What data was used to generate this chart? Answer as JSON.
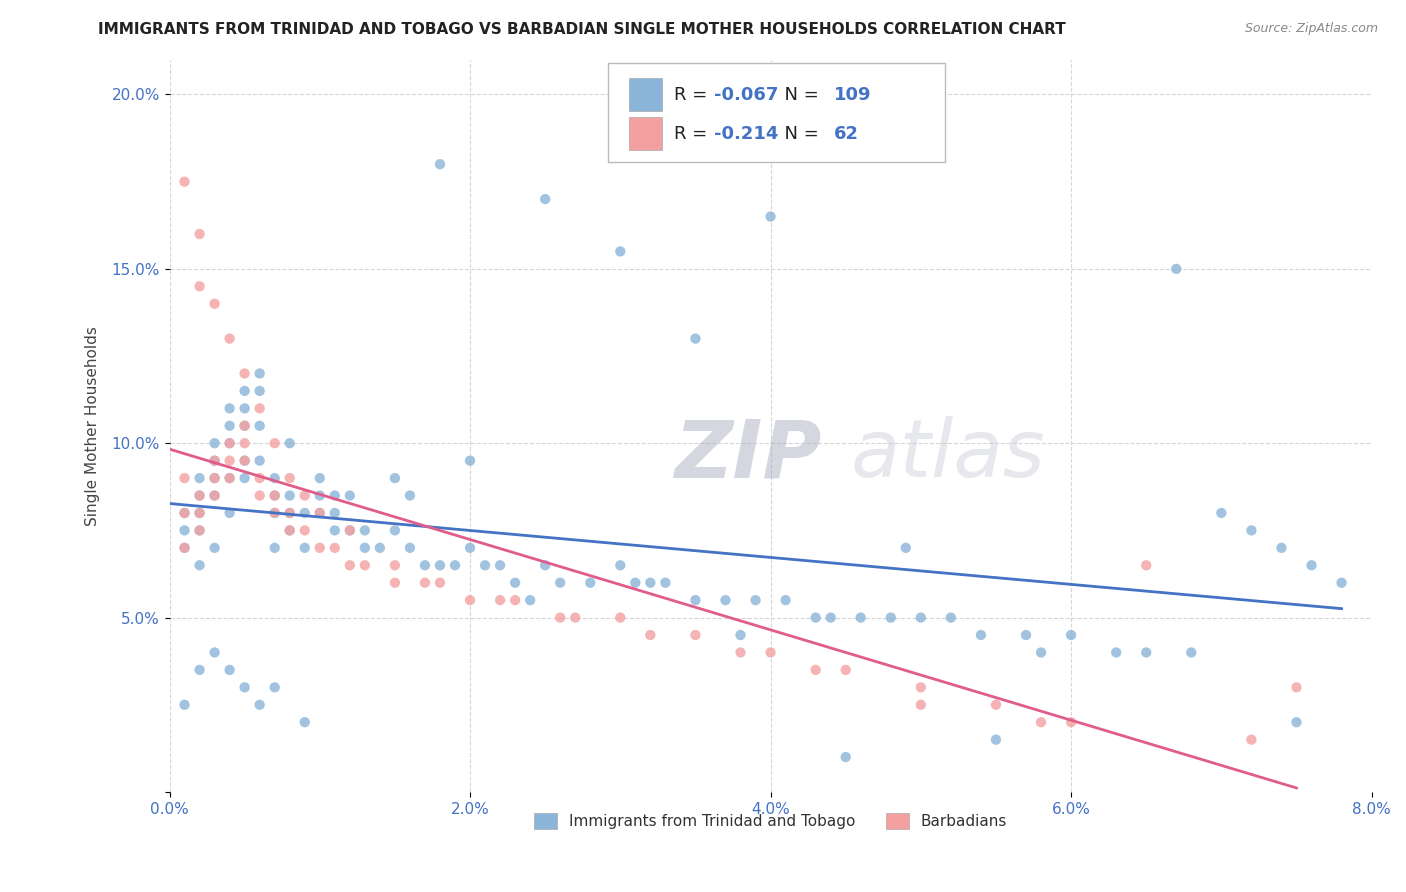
{
  "title": "IMMIGRANTS FROM TRINIDAD AND TOBAGO VS BARBADIAN SINGLE MOTHER HOUSEHOLDS CORRELATION CHART",
  "source": "Source: ZipAtlas.com",
  "ylabel": "Single Mother Households",
  "xlim": [
    0.0,
    0.08
  ],
  "ylim": [
    0.0,
    0.21
  ],
  "xticks": [
    0.0,
    0.02,
    0.04,
    0.06,
    0.08
  ],
  "xticklabels": [
    "0.0%",
    "2.0%",
    "4.0%",
    "6.0%",
    "8.0%"
  ],
  "yticks": [
    0.0,
    0.05,
    0.1,
    0.15,
    0.2
  ],
  "yticklabels": [
    "",
    "5.0%",
    "10.0%",
    "15.0%",
    "20.0%"
  ],
  "blue_color": "#8ab4d8",
  "pink_color": "#f4a0a0",
  "blue_line_color": "#4472c4",
  "pink_line_color": "#e05c8a",
  "legend_label1": "Immigrants from Trinidad and Tobago",
  "legend_label2": "Barbadians",
  "R1": "-0.067",
  "N1": "109",
  "R2": "-0.214",
  "N2": "62",
  "watermark_zip": "ZIP",
  "watermark_atlas": "atlas",
  "blue_scatter_x": [
    0.001,
    0.001,
    0.001,
    0.002,
    0.002,
    0.002,
    0.002,
    0.002,
    0.003,
    0.003,
    0.003,
    0.003,
    0.003,
    0.004,
    0.004,
    0.004,
    0.004,
    0.004,
    0.005,
    0.005,
    0.005,
    0.005,
    0.005,
    0.006,
    0.006,
    0.006,
    0.006,
    0.007,
    0.007,
    0.007,
    0.007,
    0.008,
    0.008,
    0.008,
    0.009,
    0.009,
    0.01,
    0.01,
    0.01,
    0.011,
    0.011,
    0.012,
    0.013,
    0.013,
    0.014,
    0.015,
    0.016,
    0.017,
    0.018,
    0.019,
    0.02,
    0.021,
    0.022,
    0.023,
    0.025,
    0.026,
    0.028,
    0.03,
    0.031,
    0.033,
    0.035,
    0.037,
    0.039,
    0.041,
    0.043,
    0.046,
    0.048,
    0.05,
    0.052,
    0.054,
    0.057,
    0.06,
    0.063,
    0.065,
    0.068,
    0.07,
    0.072,
    0.074,
    0.076,
    0.078,
    0.035,
    0.04,
    0.025,
    0.018,
    0.012,
    0.008,
    0.005,
    0.003,
    0.002,
    0.001,
    0.075,
    0.055,
    0.045,
    0.03,
    0.02,
    0.015,
    0.007,
    0.004,
    0.006,
    0.009,
    0.011,
    0.016,
    0.024,
    0.032,
    0.038,
    0.044,
    0.049,
    0.058,
    0.067
  ],
  "blue_scatter_y": [
    0.08,
    0.075,
    0.07,
    0.09,
    0.085,
    0.08,
    0.075,
    0.065,
    0.1,
    0.095,
    0.09,
    0.085,
    0.07,
    0.11,
    0.105,
    0.1,
    0.09,
    0.08,
    0.115,
    0.11,
    0.105,
    0.095,
    0.09,
    0.12,
    0.115,
    0.105,
    0.095,
    0.09,
    0.085,
    0.08,
    0.07,
    0.085,
    0.08,
    0.075,
    0.08,
    0.07,
    0.09,
    0.085,
    0.08,
    0.085,
    0.08,
    0.075,
    0.075,
    0.07,
    0.07,
    0.075,
    0.07,
    0.065,
    0.065,
    0.065,
    0.07,
    0.065,
    0.065,
    0.06,
    0.065,
    0.06,
    0.06,
    0.065,
    0.06,
    0.06,
    0.055,
    0.055,
    0.055,
    0.055,
    0.05,
    0.05,
    0.05,
    0.05,
    0.05,
    0.045,
    0.045,
    0.045,
    0.04,
    0.04,
    0.04,
    0.08,
    0.075,
    0.07,
    0.065,
    0.06,
    0.13,
    0.165,
    0.17,
    0.18,
    0.085,
    0.1,
    0.03,
    0.04,
    0.035,
    0.025,
    0.02,
    0.015,
    0.01,
    0.155,
    0.095,
    0.09,
    0.03,
    0.035,
    0.025,
    0.02,
    0.075,
    0.085,
    0.055,
    0.06,
    0.045,
    0.05,
    0.07,
    0.04,
    0.15
  ],
  "pink_scatter_x": [
    0.001,
    0.001,
    0.001,
    0.002,
    0.002,
    0.002,
    0.003,
    0.003,
    0.003,
    0.004,
    0.004,
    0.004,
    0.005,
    0.005,
    0.005,
    0.006,
    0.006,
    0.007,
    0.007,
    0.008,
    0.008,
    0.009,
    0.01,
    0.011,
    0.012,
    0.013,
    0.015,
    0.017,
    0.02,
    0.023,
    0.026,
    0.03,
    0.035,
    0.04,
    0.045,
    0.05,
    0.055,
    0.06,
    0.002,
    0.003,
    0.004,
    0.005,
    0.006,
    0.007,
    0.008,
    0.009,
    0.01,
    0.012,
    0.015,
    0.018,
    0.022,
    0.027,
    0.032,
    0.038,
    0.043,
    0.05,
    0.058,
    0.065,
    0.072,
    0.075,
    0.001,
    0.002
  ],
  "pink_scatter_y": [
    0.09,
    0.08,
    0.175,
    0.085,
    0.08,
    0.075,
    0.095,
    0.09,
    0.085,
    0.1,
    0.095,
    0.09,
    0.105,
    0.1,
    0.095,
    0.09,
    0.085,
    0.085,
    0.08,
    0.08,
    0.075,
    0.075,
    0.07,
    0.07,
    0.065,
    0.065,
    0.06,
    0.06,
    0.055,
    0.055,
    0.05,
    0.05,
    0.045,
    0.04,
    0.035,
    0.03,
    0.025,
    0.02,
    0.145,
    0.14,
    0.13,
    0.12,
    0.11,
    0.1,
    0.09,
    0.085,
    0.08,
    0.075,
    0.065,
    0.06,
    0.055,
    0.05,
    0.045,
    0.04,
    0.035,
    0.025,
    0.02,
    0.065,
    0.015,
    0.03,
    0.07,
    0.16
  ]
}
